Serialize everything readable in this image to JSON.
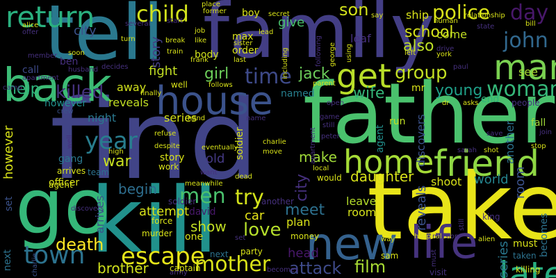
{
  "words": [
    {
      "text": "find",
      "color": "#414487"
    },
    {
      "text": "father",
      "color": "#4ac16d"
    },
    {
      "text": "take",
      "color": "#e8e419"
    },
    {
      "text": "family",
      "color": "#433e85"
    },
    {
      "text": "kill",
      "color": "#21918c"
    },
    {
      "text": "tell",
      "color": "#2a788e"
    },
    {
      "text": "go",
      "color": "#35b779"
    },
    {
      "text": "back",
      "color": "#3cbb75"
    },
    {
      "text": "house",
      "color": "#3b528b"
    },
    {
      "text": "new",
      "color": "#34618d"
    },
    {
      "text": "friend",
      "color": "#8fd744"
    },
    {
      "text": "home",
      "color": "#a5db36"
    },
    {
      "text": "life",
      "color": "#46337e"
    },
    {
      "text": "man",
      "color": "#7ad151"
    },
    {
      "text": "return",
      "color": "#2ab07f"
    },
    {
      "text": "get",
      "color": "#b8de29"
    },
    {
      "text": "later",
      "color": "#27ad81"
    },
    {
      "text": "escape",
      "color": "#e5e419"
    },
    {
      "text": "town",
      "color": "#2c728e"
    },
    {
      "text": "mother",
      "color": "#d8e219"
    },
    {
      "text": "woman",
      "color": "#35b779"
    },
    {
      "text": "child",
      "color": "#d0e11c"
    },
    {
      "text": "police",
      "color": "#d8e219"
    },
    {
      "text": "john",
      "color": "#31688e"
    },
    {
      "text": "year",
      "color": "#287d8e"
    },
    {
      "text": "men",
      "color": "#4ac16d"
    },
    {
      "text": "time",
      "color": "#3e4a89"
    },
    {
      "text": "day",
      "color": "#48186a"
    },
    {
      "text": "son",
      "color": "#d2e21b"
    },
    {
      "text": "love",
      "color": "#b5de2b"
    },
    {
      "text": "group",
      "color": "#c2df23"
    },
    {
      "text": "killed",
      "color": "#46327e"
    },
    {
      "text": "try",
      "color": "#d2e21b"
    },
    {
      "text": "attack",
      "color": "#3e4a89"
    },
    {
      "text": "film",
      "color": "#a8db34"
    },
    {
      "text": "death",
      "color": "#fde725"
    },
    {
      "text": "war",
      "color": "#c8e020"
    },
    {
      "text": "meet",
      "color": "#2d708e"
    },
    {
      "text": "help",
      "color": "#2fb47c"
    },
    {
      "text": "girl",
      "color": "#6ccd5a"
    },
    {
      "text": "jack",
      "color": "#6ccd5a"
    },
    {
      "text": "young",
      "color": "#1fa088"
    },
    {
      "text": "wife",
      "color": "#35b779"
    },
    {
      "text": "brother",
      "color": "#d0e11c"
    },
    {
      "text": "show",
      "color": "#c2df23"
    },
    {
      "text": "daughter",
      "color": "#d8e219"
    },
    {
      "text": "world",
      "color": "#25848e"
    },
    {
      "text": "make",
      "color": "#a0da39"
    },
    {
      "text": "begin",
      "color": "#2e6e8e"
    },
    {
      "text": "city",
      "color": "#46307e"
    },
    {
      "text": "school",
      "color": "#3b528b"
    },
    {
      "text": "also",
      "color": "#d5e21a"
    },
    {
      "text": "see",
      "color": "#bddf26"
    },
    {
      "text": "shoot",
      "color": "#a8db34"
    },
    {
      "text": "leave",
      "color": "#d8e219"
    },
    {
      "text": "fight",
      "color": "#b5de2b"
    },
    {
      "text": "head",
      "color": "#c2df23"
    },
    {
      "text": "car",
      "color": "#48186a"
    },
    {
      "text": "give",
      "color": "#e5e419"
    },
    {
      "text": "attempt",
      "color": "#4ac16d"
    },
    {
      "text": "plan",
      "color": "#d8e219"
    },
    {
      "text": "away",
      "color": "#d8e219"
    },
    {
      "text": "night",
      "color": "#d0e11c"
    },
    {
      "text": "room",
      "color": "#3b528b"
    },
    {
      "text": "officer",
      "color": "#2a788e"
    },
    {
      "text": "gang",
      "color": "#d5e21a"
    },
    {
      "text": "however",
      "color": "#d8e219"
    },
    {
      "text": "reveals",
      "color": "#3b528b"
    },
    {
      "text": "series",
      "color": "#2a788e"
    },
    {
      "text": "story",
      "color": "#433e85"
    },
    {
      "text": "work",
      "color": "#277f8e"
    },
    {
      "text": "old",
      "color": "#a0da39"
    },
    {
      "text": "named",
      "color": "#d8e219"
    },
    {
      "text": "mr",
      "color": "#c2df23"
    },
    {
      "text": "ship",
      "color": "#d5e21a"
    },
    {
      "text": "come",
      "color": "#d8e219"
    },
    {
      "text": "leaf",
      "color": "#c2df23"
    },
    {
      "text": "body",
      "color": "#21908d"
    },
    {
      "text": "max",
      "color": "#46307e"
    },
    {
      "text": "order",
      "color": "#d8e219"
    },
    {
      "text": "boy",
      "color": "#c2df23"
    },
    {
      "text": "end",
      "color": "#d0e11c"
    },
    {
      "text": "fall",
      "color": "#d8e219"
    },
    {
      "text": "run",
      "color": "#d8e219"
    },
    {
      "text": "one",
      "color": "#d8e219"
    },
    {
      "text": "team",
      "color": "#2fb47c"
    },
    {
      "text": "arrives",
      "color": "#3b528b"
    },
    {
      "text": "call",
      "color": "#3e4a89"
    },
    {
      "text": "ben",
      "color": "#46307e"
    },
    {
      "text": "david",
      "color": "#48186a"
    },
    {
      "text": "murder",
      "color": "#d8e219"
    },
    {
      "text": "force",
      "color": "#2a788e"
    },
    {
      "text": "agent",
      "color": "#21908d"
    },
    {
      "text": "discovers",
      "color": "#3b528b"
    },
    {
      "text": "soldier",
      "color": "#d8e219"
    },
    {
      "text": "another",
      "color": "#2c728e"
    },
    {
      "text": "money",
      "color": "#d8e219"
    },
    {
      "text": "way",
      "color": "#443983"
    },
    {
      "text": "sam",
      "color": "#2c728e"
    },
    {
      "text": "party",
      "color": "#d8e219"
    },
    {
      "text": "next",
      "color": "#2c728e"
    },
    {
      "text": "set",
      "color": "#3b528b"
    },
    {
      "text": "captain",
      "color": "#d8e219"
    },
    {
      "text": "army",
      "color": "#d8e219"
    },
    {
      "text": "becomes",
      "color": "#2c728e"
    },
    {
      "text": "visit",
      "color": "#d8e219"
    },
    {
      "text": "killing",
      "color": "#46307e"
    },
    {
      "text": "taken",
      "color": "#d8e219"
    },
    {
      "text": "must",
      "color": "#46307e"
    },
    {
      "text": "king",
      "color": "#d8e219"
    },
    {
      "text": "alien",
      "color": "#d8e219"
    },
    {
      "text": "hospital",
      "color": "#2c728e"
    },
    {
      "text": "mission",
      "color": "#46307e"
    },
    {
      "text": "local",
      "color": "#d8e219"
    },
    {
      "text": "would",
      "color": "#46307e"
    },
    {
      "text": "dead",
      "color": "#46307e"
    },
    {
      "text": "meanwhile",
      "color": "#46307e"
    },
    {
      "text": "want",
      "color": "#d8e219"
    },
    {
      "text": "move",
      "color": "#2c728e"
    },
    {
      "text": "charlie",
      "color": "#3b528b"
    },
    {
      "text": "eventually",
      "color": "#d8e219"
    },
    {
      "text": "crew",
      "color": "#d8e219"
    },
    {
      "text": "high",
      "color": "#46307e"
    },
    {
      "text": "despite",
      "color": "#46307e"
    },
    {
      "text": "refuse",
      "color": "#46307e"
    },
    {
      "text": "hand",
      "color": "#d8e219"
    },
    {
      "text": "name",
      "color": "#d8e219"
    },
    {
      "text": "open",
      "color": "#d8e219"
    },
    {
      "text": "game",
      "color": "#46307e"
    },
    {
      "text": "still",
      "color": "#46307e"
    },
    {
      "text": "peter",
      "color": "#d8e219"
    },
    {
      "text": "dr",
      "color": "#d8e219"
    },
    {
      "text": "asks",
      "color": "#d8e219"
    },
    {
      "text": "people",
      "color": "#d8e219"
    },
    {
      "text": "save",
      "color": "#46307e"
    },
    {
      "text": "sarah",
      "color": "#d8e219"
    },
    {
      "text": "shot",
      "color": "#d8e219"
    },
    {
      "text": "stop",
      "color": "#d8e219"
    },
    {
      "text": "join",
      "color": "#3b528b"
    },
    {
      "text": "well",
      "color": "#46307e"
    },
    {
      "text": "follows",
      "color": "#d8e219"
    },
    {
      "text": "finally",
      "color": "#d8e219"
    },
    {
      "text": "parent",
      "color": "#d8e219"
    },
    {
      "text": "decides",
      "color": "#d8e219"
    },
    {
      "text": "husband",
      "color": "#46307e"
    },
    {
      "text": "apartment",
      "color": "#46307e"
    },
    {
      "text": "camp",
      "color": "#46307e"
    },
    {
      "text": "soon",
      "color": "#46307e"
    },
    {
      "text": "member",
      "color": "#46307e"
    },
    {
      "text": "offer",
      "color": "#46307e"
    },
    {
      "text": "alice",
      "color": "#d8e219"
    },
    {
      "text": "several",
      "color": "#d8e219"
    },
    {
      "text": "turn",
      "color": "#46307e"
    },
    {
      "text": "break",
      "color": "#46307e"
    },
    {
      "text": "train",
      "color": "#46307e"
    },
    {
      "text": "start",
      "color": "#d8e219"
    },
    {
      "text": "job",
      "color": "#d8e219"
    },
    {
      "text": "like",
      "color": "#46307e"
    },
    {
      "text": "frank",
      "color": "#d8e219"
    },
    {
      "text": "sister",
      "color": "#d8e219"
    },
    {
      "text": "last",
      "color": "#d8e219"
    },
    {
      "text": "place",
      "color": "#d8e219"
    },
    {
      "text": "former",
      "color": "#46307e"
    },
    {
      "text": "lead",
      "color": "#46307e"
    },
    {
      "text": "secret",
      "color": "#46307e"
    },
    {
      "text": "say",
      "color": "#46307e"
    },
    {
      "text": "left",
      "color": "#d8e219"
    },
    {
      "text": "york",
      "color": "#46307e"
    },
    {
      "text": "drive",
      "color": "#46307e"
    },
    {
      "text": "relationship",
      "color": "#d8e219"
    },
    {
      "text": "human",
      "color": "#46307e"
    },
    {
      "text": "bill",
      "color": "#d8e219"
    },
    {
      "text": "paul",
      "color": "#d8e219"
    },
    {
      "text": "state",
      "color": "#d8e219"
    },
    {
      "text": "become",
      "color": "#46307e"
    },
    {
      "text": "power",
      "color": "#d8e219"
    },
    {
      "text": "along",
      "color": "#d8e219"
    },
    {
      "text": "rescue",
      "color": "#d8e219"
    },
    {
      "text": "travel",
      "color": "#d8e219"
    },
    {
      "text": "billy",
      "color": "#d8e219"
    },
    {
      "text": "gun",
      "color": "#d8e219"
    },
    {
      "text": "upon",
      "color": "#d8e219"
    },
    {
      "text": "learns",
      "color": "#d8e219"
    },
    {
      "text": "realizes",
      "color": "#d8e219"
    },
    {
      "text": "including",
      "color": "#d8e219"
    },
    {
      "text": "following",
      "color": "#46307e"
    },
    {
      "text": "george",
      "color": "#d8e219"
    },
    {
      "text": "using",
      "color": "#d8e219"
    },
    {
      "text": "battle",
      "color": "#d8e219"
    },
    {
      "text": "together",
      "color": "#d8e219"
    },
    {
      "text": "island",
      "color": "#d8e219"
    },
    {
      "text": "leaving",
      "color": "#46307e"
    },
    {
      "text": "michael",
      "color": "#d8e219"
    },
    {
      "text": "mary",
      "color": "#d8e219"
    },
    {
      "text": "around",
      "color": "#d8e219"
    },
    {
      "text": "part",
      "color": "#46307e"
    },
    {
      "text": "joe",
      "color": "#46307e"
    },
    {
      "text": "love",
      "color": "#d8e219"
    }
  ]
}
